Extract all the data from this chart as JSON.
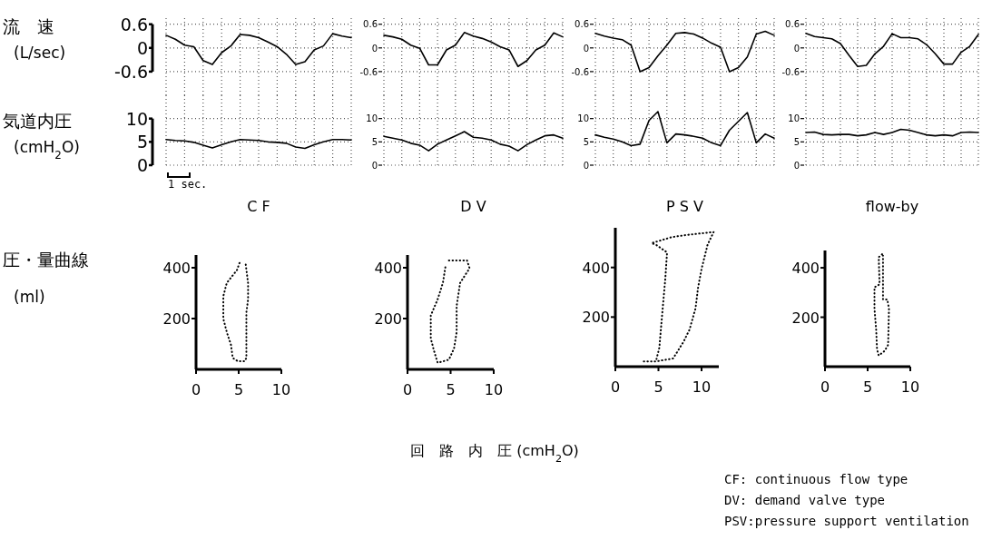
{
  "chart_data": [
    {
      "type": "line",
      "ylabel": "流　速 (L/sec)",
      "categories": [
        null,
        null,
        null,
        null,
        null,
        null,
        null,
        null,
        null,
        null,
        null,
        null,
        null,
        null,
        null,
        null,
        null,
        null,
        null,
        null,
        null
      ],
      "values": [
        0.32,
        0.22,
        0.07,
        0.03,
        -0.32,
        -0.42,
        -0.12,
        0.05,
        0.34,
        0.32,
        0.26,
        0.15,
        0.03,
        -0.16,
        -0.42,
        -0.35,
        -0.05,
        0.05,
        0.36,
        0.3,
        0.26
      ],
      "color": "#000000",
      "ylim": [
        -1.2,
        0.8
      ],
      "yticks": [
        0.6,
        0,
        -0.6
      ],
      "grid": true,
      "tick_labels": "y"
    },
    {
      "type": "line",
      "categories": [
        null,
        null,
        null,
        null,
        null,
        null,
        null,
        null,
        null,
        null,
        null,
        null,
        null,
        null,
        null,
        null,
        null,
        null,
        null,
        null,
        null
      ],
      "values": [
        0.32,
        0.28,
        0.22,
        0.07,
        -0.01,
        -0.43,
        -0.43,
        -0.05,
        0.07,
        0.39,
        0.3,
        0.24,
        0.15,
        0.03,
        -0.05,
        -0.47,
        -0.32,
        -0.05,
        0.07,
        0.38,
        0.28
      ],
      "color": "#000000",
      "ylim": [
        -1.2,
        0.8
      ],
      "yticks": [
        0.6,
        0,
        -0.6
      ],
      "grid": true,
      "tick_labels": "y"
    },
    {
      "type": "line",
      "categories": [
        null,
        null,
        null,
        null,
        null,
        null,
        null,
        null,
        null,
        null,
        null,
        null,
        null,
        null,
        null,
        null,
        null,
        null,
        null,
        null,
        null
      ],
      "values": [
        0.37,
        0.3,
        0.25,
        0.21,
        0.07,
        -0.6,
        -0.5,
        -0.2,
        0.07,
        0.37,
        0.39,
        0.35,
        0.25,
        0.12,
        0.02,
        -0.6,
        -0.5,
        -0.23,
        0.35,
        0.42,
        0.32
      ],
      "color": "#000000",
      "ylim": [
        -1.2,
        0.8
      ],
      "yticks": [
        0.6,
        0,
        -0.6
      ],
      "grid": true,
      "tick_labels": "y"
    },
    {
      "type": "line",
      "categories": [
        null,
        null,
        null,
        null,
        null,
        null,
        null,
        null,
        null,
        null,
        null,
        null,
        null,
        null,
        null,
        null,
        null,
        null,
        null,
        null,
        null
      ],
      "values": [
        0.37,
        0.29,
        0.26,
        0.23,
        0.11,
        -0.19,
        -0.47,
        -0.44,
        -0.15,
        0.04,
        0.36,
        0.26,
        0.26,
        0.23,
        0.08,
        -0.15,
        -0.41,
        -0.41,
        -0.11,
        0.04,
        0.34
      ],
      "color": "#000000",
      "ylim": [
        -1.2,
        0.8
      ],
      "yticks": [
        0.6,
        0,
        -0.6
      ],
      "grid": true,
      "tick_labels": "y"
    },
    {
      "type": "line",
      "ylabel": "気道内圧 (cmH$_{2}$O)",
      "xlabel": "C F",
      "annotations": [
        "1 sec."
      ],
      "categories": [
        null,
        null,
        null,
        null,
        null,
        null,
        null,
        null,
        null,
        null,
        null,
        null,
        null,
        null,
        null,
        null,
        null,
        null,
        null,
        null,
        null
      ],
      "values": [
        5.5,
        5.3,
        5.2,
        4.9,
        4.3,
        3.7,
        4.4,
        5.0,
        5.5,
        5.4,
        5.3,
        5.0,
        4.9,
        4.7,
        3.9,
        3.6,
        4.4,
        5.0,
        5.5,
        5.5,
        5.4
      ],
      "color": "#000000",
      "ylim": [
        0,
        15
      ],
      "yticks": [
        10,
        5,
        0
      ],
      "grid": true,
      "tick_labels": "y"
    },
    {
      "type": "line",
      "xlabel": "D V",
      "categories": [
        null,
        null,
        null,
        null,
        null,
        null,
        null,
        null,
        null,
        null,
        null,
        null,
        null,
        null,
        null,
        null,
        null,
        null,
        null,
        null,
        null
      ],
      "values": [
        6.2,
        5.8,
        5.4,
        4.7,
        4.3,
        3.1,
        4.5,
        5.4,
        6.3,
        7.2,
        6.0,
        5.8,
        5.4,
        4.5,
        4.1,
        3.1,
        4.4,
        5.4,
        6.3,
        6.5,
        5.8
      ],
      "color": "#000000",
      "ylim": [
        0,
        15
      ],
      "yticks": [
        10,
        5,
        0
      ],
      "grid": true,
      "tick_labels": "y"
    },
    {
      "type": "line",
      "xlabel": "P S V",
      "categories": [
        null,
        null,
        null,
        null,
        null,
        null,
        null,
        null,
        null,
        null,
        null,
        null,
        null,
        null,
        null,
        null,
        null,
        null,
        null,
        null,
        null
      ],
      "values": [
        6.5,
        6.0,
        5.6,
        5.0,
        4.2,
        4.5,
        9.6,
        11.5,
        4.8,
        6.7,
        6.5,
        6.2,
        5.8,
        4.8,
        4.2,
        7.5,
        9.4,
        11.3,
        4.8,
        6.7,
        5.8
      ],
      "color": "#000000",
      "ylim": [
        0,
        15
      ],
      "yticks": [
        10,
        5,
        0
      ],
      "grid": true,
      "tick_labels": "y"
    },
    {
      "type": "line",
      "xlabel": "flow-by",
      "categories": [
        null,
        null,
        null,
        null,
        null,
        null,
        null,
        null,
        null,
        null,
        null,
        null,
        null,
        null,
        null,
        null,
        null,
        null,
        null,
        null,
        null
      ],
      "values": [
        7.0,
        7.1,
        6.6,
        6.5,
        6.6,
        6.6,
        6.3,
        6.5,
        7.0,
        6.6,
        7.0,
        7.7,
        7.5,
        7.0,
        6.5,
        6.3,
        6.5,
        6.3,
        7.0,
        7.1,
        7.0
      ],
      "color": "#000000",
      "ylim": [
        0,
        15
      ],
      "yticks": [
        10,
        5,
        0
      ],
      "grid": true,
      "tick_labels": "y"
    },
    {
      "type": "line",
      "ylabel": "圧・量曲線 (ml)",
      "x": [
        5.1,
        4.8,
        3.6,
        3.2,
        3.2,
        3.6,
        4.1,
        4.3,
        4.9,
        5.7,
        5.9,
        5.9,
        6.1,
        6.1,
        5.8
      ],
      "values": [
        419,
        391,
        340,
        288,
        199,
        147,
        96,
        45,
        32,
        32,
        45,
        224,
        276,
        340,
        419
      ],
      "color": "#000000",
      "line_style": "dotted",
      "xlim": [
        0,
        10
      ],
      "xticks": [
        0,
        5,
        10
      ],
      "ylim": [
        0,
        450
      ],
      "yticks": [
        200,
        400
      ]
    },
    {
      "type": "line",
      "x": [
        4.8,
        6.9,
        7.2,
        6.1,
        5.7,
        5.7,
        5.4,
        4.8,
        3.5,
        3.1,
        2.7,
        2.7,
        3.5,
        4.1,
        4.4
      ],
      "values": [
        429,
        429,
        398,
        340,
        250,
        147,
        83,
        38,
        26,
        70,
        122,
        212,
        276,
        340,
        404
      ],
      "color": "#000000",
      "line_style": "dotted",
      "xlim": [
        0,
        10
      ],
      "xticks": [
        0,
        5,
        10
      ],
      "ylim": [
        0,
        450
      ],
      "yticks": [
        200,
        400
      ]
    },
    {
      "type": "line",
      "x": [
        3.3,
        4.7,
        5.1,
        5.4,
        5.8,
        6.0,
        4.7,
        4.2,
        6.5,
        8.2,
        11.4,
        10.7,
        10.0,
        9.6,
        9.3,
        8.6,
        7.9,
        6.7,
        4.7
      ],
      "values": [
        21,
        21,
        76,
        198,
        357,
        461,
        492,
        498,
        522,
        531,
        543,
        492,
        394,
        320,
        235,
        149,
        100,
        33,
        21
      ],
      "color": "#000000",
      "line_style": "dotted",
      "xlim": [
        0,
        12
      ],
      "xticks": [
        0,
        5,
        10
      ],
      "ylim": [
        0,
        560
      ],
      "yticks": [
        200,
        400
      ]
    },
    {
      "type": "line",
      "x": [
        6.7,
        6.3,
        6.4,
        5.8,
        5.8,
        6.0,
        6.1,
        6.3,
        7.0,
        7.4,
        7.5,
        7.3,
        6.8,
        6.8,
        6.8
      ],
      "values": [
        455,
        443,
        333,
        321,
        235,
        149,
        70,
        45,
        64,
        88,
        235,
        272,
        272,
        394,
        449
      ],
      "color": "#000000",
      "line_style": "dotted",
      "xlim": [
        0,
        10
      ],
      "xticks": [
        0,
        5,
        10
      ],
      "ylim": [
        0,
        470
      ],
      "yticks": [
        200,
        400
      ]
    },
    {
      "type": "other",
      "annotations": [
        "回　路　内　圧 (cmH$_{2}$O)",
        "CF: continuous flow type",
        "DV: demand valve type",
        "PSV:pressure support ventilation"
      ]
    }
  ]
}
